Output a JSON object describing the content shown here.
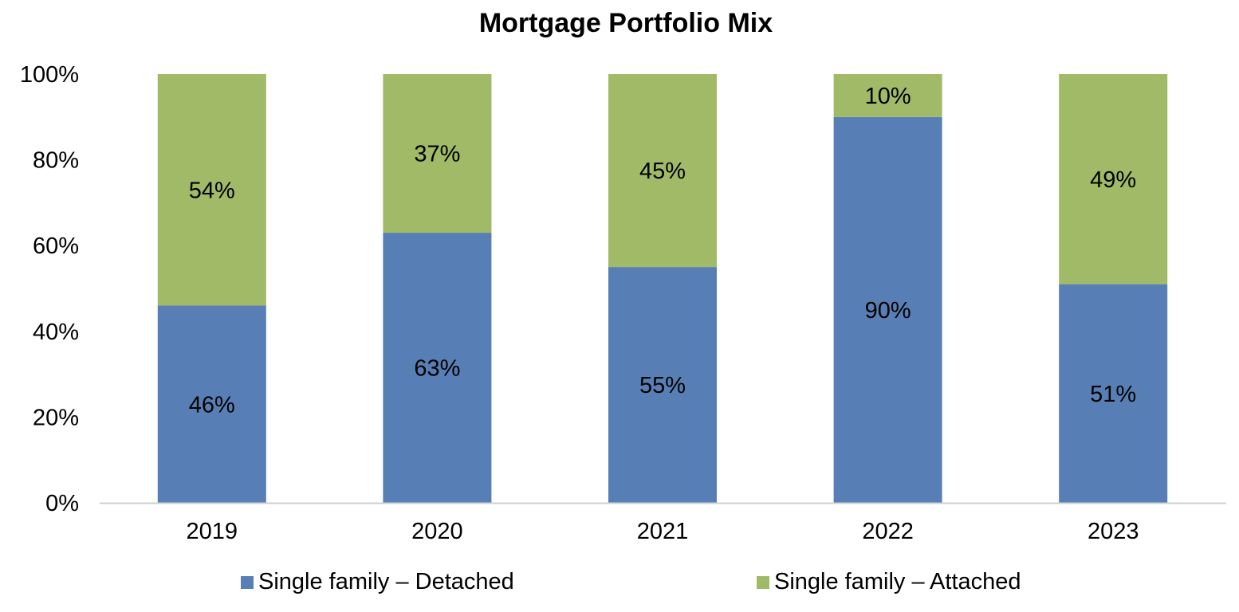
{
  "chart_data": {
    "type": "bar",
    "stacked": true,
    "title": "Mortgage Portfolio Mix",
    "xlabel": "",
    "ylabel": "",
    "categories": [
      "2019",
      "2020",
      "2021",
      "2022",
      "2023"
    ],
    "series": [
      {
        "name": "Single family – Detached",
        "color": "#587fb5",
        "values": [
          46,
          63,
          55,
          90,
          51
        ],
        "labels": [
          "46%",
          "63%",
          "55%",
          "90%",
          "51%"
        ]
      },
      {
        "name": "Single family – Attached",
        "color": "#a0ba67",
        "values": [
          54,
          37,
          45,
          10,
          49
        ],
        "labels": [
          "54%",
          "37%",
          "45%",
          "10%",
          "49%"
        ]
      }
    ],
    "ylim": [
      0,
      100
    ],
    "yticks": [
      0,
      20,
      40,
      60,
      80,
      100
    ],
    "ytick_labels": [
      "0%",
      "20%",
      "40%",
      "60%",
      "80%",
      "100%"
    ],
    "grid": false,
    "legend_position": "bottom"
  }
}
